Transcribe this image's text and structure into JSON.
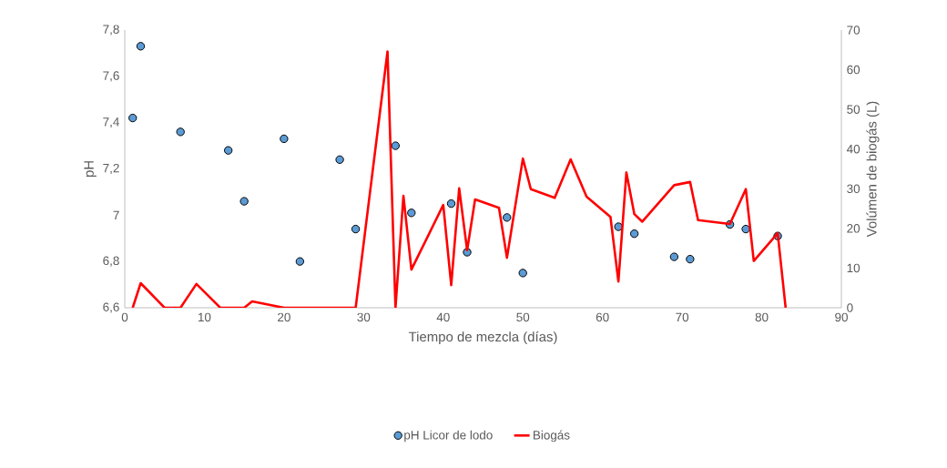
{
  "chart_data": {
    "type": "scatter",
    "xlabel": "Tiempo de mezcla (días)",
    "ylabel": "pH",
    "y2label": "Volúmen de biogás (L)",
    "xlim": [
      0,
      90
    ],
    "xticks": [
      0,
      10,
      20,
      30,
      40,
      50,
      60,
      70,
      80,
      90
    ],
    "ylim": [
      6.6,
      7.8
    ],
    "yticks": [
      {
        "value": 6.6,
        "label": "6,6"
      },
      {
        "value": 6.8,
        "label": "6,8"
      },
      7,
      {
        "value": 7.2,
        "label": "7,2"
      },
      {
        "value": 7.4,
        "label": "7,4"
      },
      {
        "value": 7.6,
        "label": "7,6"
      },
      {
        "value": 7.8,
        "label": "7,8"
      }
    ],
    "y2lim": [
      0,
      70
    ],
    "y2ticks": [
      0,
      10,
      20,
      30,
      40,
      50,
      60,
      70
    ],
    "grid": false,
    "legend": "bottom",
    "series": [
      {
        "name": "pH Licor de lodo",
        "marker": "circle",
        "color": "#5b9bd5",
        "x": [
          1,
          2,
          7,
          13,
          15,
          20,
          22,
          27,
          29,
          34,
          36,
          41,
          43,
          48,
          50,
          62,
          64,
          69,
          71,
          76,
          78,
          82
        ],
        "values": [
          7.42,
          7.73,
          7.36,
          7.28,
          7.06,
          7.33,
          6.8,
          7.24,
          6.94,
          7.3,
          7.01,
          7.05,
          6.84,
          6.99,
          6.75,
          6.95,
          6.92,
          6.82,
          6.81,
          6.96,
          6.94,
          6.91
        ]
      },
      {
        "name": "Biogás",
        "type": "line",
        "axis": "y2",
        "marker": "none",
        "line_style": "solid",
        "color": "#ff0000",
        "x": [
          1,
          2,
          5,
          7,
          9,
          12,
          15,
          16,
          20,
          29,
          33,
          34,
          35,
          36,
          40,
          41,
          42,
          43,
          44,
          47,
          48,
          50,
          51,
          54,
          56,
          58,
          61,
          62,
          63,
          64,
          65,
          69,
          71,
          72,
          76,
          78,
          79,
          82,
          83
        ],
        "values": [
          0,
          6.2,
          0,
          0,
          6,
          0,
          0,
          1.6,
          0,
          0,
          64.6,
          0,
          28.2,
          9.6,
          25.9,
          5.7,
          30.1,
          14.5,
          27.3,
          25.2,
          12.6,
          37.6,
          29.9,
          27.7,
          37.4,
          28,
          22.9,
          6.6,
          34.1,
          23.6,
          21.7,
          30.9,
          31.7,
          22.1,
          21.1,
          29.9,
          11.8,
          18.8,
          0
        ]
      }
    ]
  }
}
